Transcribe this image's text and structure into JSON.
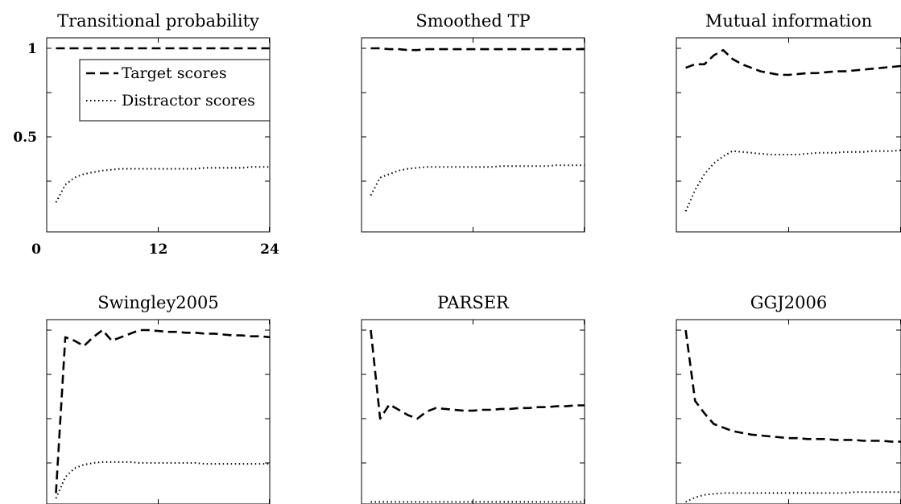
{
  "chart_data": [
    {
      "type": "line",
      "title": "Transitional probability",
      "x": [
        1,
        2,
        3,
        4,
        5,
        6,
        7,
        8,
        9,
        10,
        11,
        12,
        13,
        14,
        15,
        16,
        17,
        18,
        19,
        20,
        21,
        22,
        23,
        24
      ],
      "xlim": [
        0,
        24
      ],
      "ylim": [
        0,
        1.05
      ],
      "xticks": [
        "0",
        "12",
        "24"
      ],
      "yticks": [
        "0.5",
        "1"
      ],
      "series": [
        {
          "name": "Target scores",
          "style": "dashed",
          "values": [
            1,
            1,
            1,
            1,
            1,
            1,
            1,
            1,
            1,
            1,
            1,
            1,
            1,
            1,
            1,
            1,
            1,
            1,
            1,
            1,
            1,
            1,
            1,
            1
          ]
        },
        {
          "name": "Distractor scores",
          "style": "dotted",
          "values": [
            0.13,
            0.23,
            0.27,
            0.29,
            0.3,
            0.31,
            0.315,
            0.32,
            0.32,
            0.32,
            0.32,
            0.32,
            0.32,
            0.32,
            0.32,
            0.32,
            0.325,
            0.325,
            0.325,
            0.325,
            0.325,
            0.33,
            0.33,
            0.33
          ]
        }
      ],
      "legend": {
        "position": "top-right",
        "entries": [
          "Target scores",
          "Distractor scores"
        ]
      }
    },
    {
      "type": "line",
      "title": "Smoothed TP",
      "x": [
        1,
        2,
        3,
        4,
        5,
        6,
        7,
        8,
        9,
        10,
        11,
        12,
        13,
        14,
        15,
        16,
        17,
        18,
        19,
        20,
        21,
        22,
        23,
        24
      ],
      "xlim": [
        0,
        24
      ],
      "ylim": [
        0,
        1.05
      ],
      "series": [
        {
          "name": "Target scores",
          "style": "dashed",
          "values": [
            1,
            1,
            0.995,
            0.995,
            0.99,
            0.99,
            0.995,
            0.995,
            0.995,
            0.995,
            0.995,
            0.995,
            0.995,
            0.995,
            0.995,
            0.995,
            0.995,
            0.995,
            0.995,
            0.995,
            0.995,
            0.995,
            0.995,
            0.995
          ]
        },
        {
          "name": "Distractor scores",
          "style": "dotted",
          "values": [
            0.17,
            0.27,
            0.29,
            0.31,
            0.32,
            0.325,
            0.33,
            0.33,
            0.33,
            0.33,
            0.33,
            0.33,
            0.33,
            0.33,
            0.335,
            0.335,
            0.335,
            0.335,
            0.335,
            0.335,
            0.34,
            0.34,
            0.34,
            0.34
          ]
        }
      ]
    },
    {
      "type": "line",
      "title": "Mutual information",
      "x": [
        1,
        2,
        3,
        4,
        5,
        6,
        7,
        8,
        9,
        10,
        11,
        12,
        13,
        14,
        15,
        16,
        17,
        18,
        19,
        20,
        21,
        22,
        23,
        24
      ],
      "xlim": [
        0,
        24
      ],
      "ylim": [
        0,
        1.05
      ],
      "series": [
        {
          "name": "Target scores",
          "style": "dashed",
          "values": [
            0.89,
            0.91,
            0.91,
            0.96,
            0.99,
            0.94,
            0.91,
            0.89,
            0.87,
            0.86,
            0.85,
            0.85,
            0.855,
            0.86,
            0.86,
            0.865,
            0.87,
            0.87,
            0.875,
            0.88,
            0.885,
            0.89,
            0.895,
            0.9
          ]
        },
        {
          "name": "Distractor scores",
          "style": "dotted",
          "values": [
            0.08,
            0.2,
            0.29,
            0.35,
            0.39,
            0.42,
            0.415,
            0.41,
            0.405,
            0.4,
            0.4,
            0.4,
            0.4,
            0.405,
            0.41,
            0.41,
            0.41,
            0.415,
            0.415,
            0.415,
            0.42,
            0.42,
            0.42,
            0.425
          ]
        }
      ]
    },
    {
      "type": "line",
      "title": "Swingley2005",
      "x": [
        1,
        2,
        3,
        4,
        5,
        6,
        7,
        8,
        9,
        10,
        11,
        12,
        13,
        14,
        15,
        16,
        17,
        18,
        19,
        20,
        21,
        22,
        23,
        24
      ],
      "xlim": [
        0,
        24
      ],
      "ylim": [
        0,
        1.05
      ],
      "series": [
        {
          "name": "Target scores",
          "style": "dashed",
          "values": [
            0.08,
            0.96,
            0.94,
            0.91,
            0.96,
            1.0,
            0.94,
            0.96,
            0.98,
            1.0,
            1.0,
            0.995,
            0.99,
            0.99,
            0.985,
            0.985,
            0.98,
            0.98,
            0.975,
            0.97,
            0.97,
            0.965,
            0.965,
            0.96
          ]
        },
        {
          "name": "Distractor scores",
          "style": "dotted",
          "values": [
            0.05,
            0.17,
            0.22,
            0.24,
            0.25,
            0.255,
            0.255,
            0.255,
            0.255,
            0.25,
            0.25,
            0.25,
            0.25,
            0.25,
            0.25,
            0.25,
            0.245,
            0.245,
            0.245,
            0.245,
            0.245,
            0.245,
            0.245,
            0.245
          ]
        }
      ]
    },
    {
      "type": "line",
      "title": "PARSER",
      "x": [
        1,
        2,
        3,
        4,
        5,
        6,
        7,
        8,
        9,
        10,
        11,
        12,
        13,
        14,
        15,
        16,
        17,
        18,
        19,
        20,
        21,
        22,
        23,
        24
      ],
      "xlim": [
        0,
        24
      ],
      "ylim": [
        0,
        1.05
      ],
      "series": [
        {
          "name": "Target scores",
          "style": "dashed",
          "values": [
            1.0,
            0.5,
            0.58,
            0.55,
            0.52,
            0.5,
            0.54,
            0.56,
            0.555,
            0.55,
            0.545,
            0.545,
            0.55,
            0.55,
            0.555,
            0.555,
            0.56,
            0.56,
            0.565,
            0.565,
            0.57,
            0.57,
            0.575,
            0.575
          ]
        },
        {
          "name": "Distractor scores",
          "style": "dotted",
          "values": [
            0.03,
            0.03,
            0.03,
            0.03,
            0.03,
            0.03,
            0.03,
            0.03,
            0.03,
            0.03,
            0.03,
            0.03,
            0.03,
            0.03,
            0.03,
            0.03,
            0.03,
            0.03,
            0.03,
            0.03,
            0.03,
            0.03,
            0.03,
            0.03
          ]
        }
      ]
    },
    {
      "type": "line",
      "title": "GGJ2006",
      "x": [
        1,
        2,
        3,
        4,
        5,
        6,
        7,
        8,
        9,
        10,
        11,
        12,
        13,
        14,
        15,
        16,
        17,
        18,
        19,
        20,
        21,
        22,
        23,
        24
      ],
      "xlim": [
        0,
        24
      ],
      "ylim": [
        0,
        1.05
      ],
      "series": [
        {
          "name": "Target scores",
          "style": "dashed",
          "values": [
            1.0,
            0.6,
            0.53,
            0.47,
            0.45,
            0.43,
            0.42,
            0.41,
            0.405,
            0.4,
            0.395,
            0.39,
            0.39,
            0.385,
            0.385,
            0.385,
            0.38,
            0.38,
            0.38,
            0.375,
            0.375,
            0.375,
            0.37,
            0.37
          ]
        },
        {
          "name": "Distractor scores",
          "style": "dotted",
          "values": [
            0.03,
            0.055,
            0.07,
            0.075,
            0.08,
            0.08,
            0.08,
            0.08,
            0.08,
            0.08,
            0.08,
            0.08,
            0.08,
            0.08,
            0.08,
            0.08,
            0.08,
            0.08,
            0.085,
            0.085,
            0.085,
            0.085,
            0.085,
            0.085
          ]
        }
      ]
    }
  ]
}
